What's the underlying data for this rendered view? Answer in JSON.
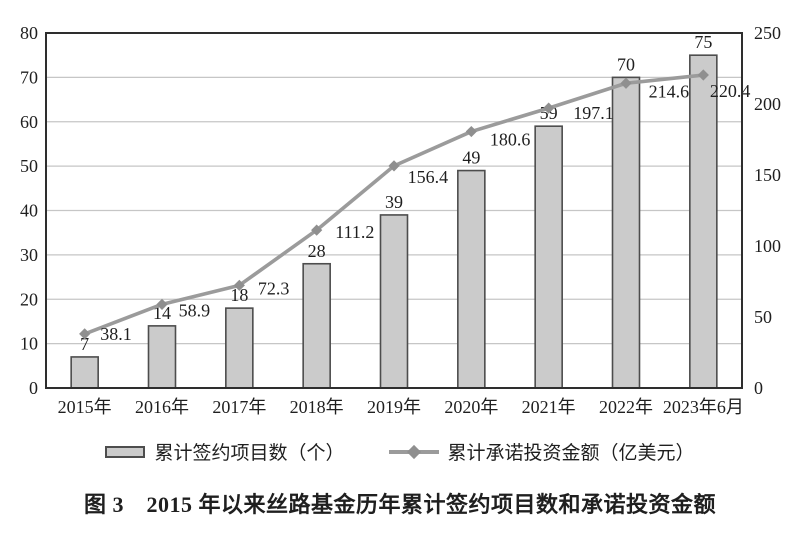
{
  "figure": {
    "caption": "图 3　2015 年以来丝路基金历年累计签约项目数和承诺投资金额"
  },
  "legend": {
    "items": [
      {
        "label": "累计签约项目数（个）",
        "swatch": "bar"
      },
      {
        "label": "累计承诺投资金额（亿美元）",
        "swatch": "line-diamond"
      }
    ]
  },
  "chart_data": {
    "type": "combo-bar-line",
    "categories": [
      "2015年",
      "2016年",
      "2017年",
      "2018年",
      "2019年",
      "2020年",
      "2021年",
      "2022年",
      "2023年6月"
    ],
    "series": [
      {
        "name": "累计签约项目数（个）",
        "type": "bar",
        "axis": "left",
        "values": [
          7,
          14,
          18,
          28,
          39,
          49,
          59,
          70,
          75
        ]
      },
      {
        "name": "累计承诺投资金额（亿美元）",
        "type": "line",
        "axis": "right",
        "marker": "diamond",
        "values": [
          38.1,
          58.9,
          72.3,
          111.2,
          156.4,
          180.6,
          197.1,
          214.6,
          220.4
        ]
      }
    ],
    "left_axis": {
      "min": 0,
      "max": 80,
      "ticks": [
        0,
        10,
        20,
        30,
        40,
        50,
        60,
        70,
        80
      ]
    },
    "right_axis": {
      "min": 0,
      "max": 250,
      "ticks": [
        0,
        50,
        100,
        150,
        200,
        250
      ]
    },
    "grid": "horizontal",
    "legend_position": "bottom",
    "colors": {
      "bar_fill": "#cbcbcb",
      "bar_stroke": "#4d4d4d",
      "line": "#9b9b9b",
      "marker": "#8f8f8f",
      "grid": "#c6c6c6",
      "frame": "#2e2e2e",
      "text": "#1f1f1f"
    }
  }
}
